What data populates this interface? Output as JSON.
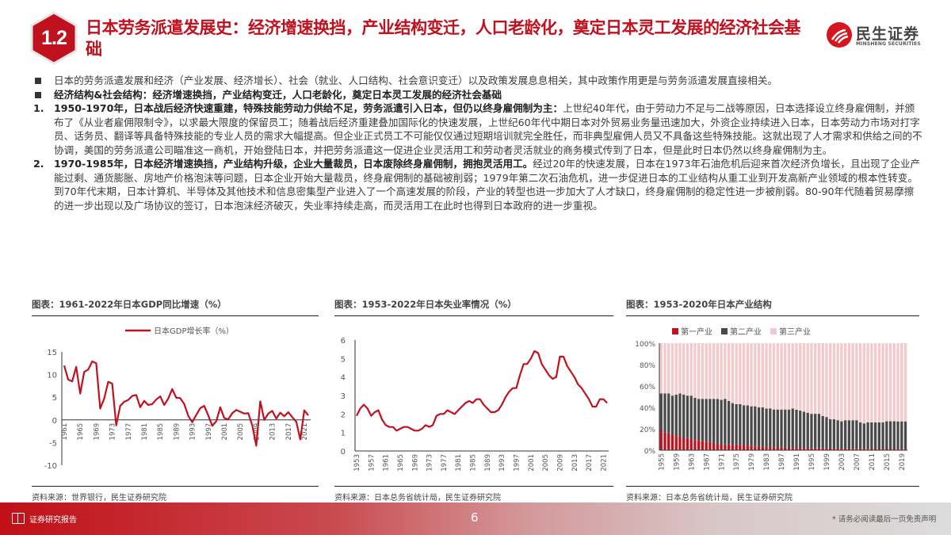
{
  "header": {
    "section_number": "1.2",
    "title": "日本劳务派遣发展史：经济增速换挡，产业结构变迁，人口老龄化，奠定日本灵工发展的经济社会基础",
    "logo_cn": "民生证券",
    "logo_en": "MINSHENG SECURITIES"
  },
  "body": {
    "bullet1": "日本的劳务派遣发展和经济（产业发展、经济增长）、社会（就业、人口结构、社会意识变迁）以及政策发展息息相关，其中政策作用更是与劳务派遣发展直接相关。",
    "bullet2": "经济结构&社会结构：经济增速换挡，产业结构变迁，人口老龄化，奠定日本灵工发展的经济社会基础",
    "item1_marker": "1.",
    "item1_bold": "1950-1970年，日本战后经济快速重建，特殊技能劳动力供给不足，劳务派遣引入日本，但仍以终身雇佣制为主：",
    "item1_text": "上世纪40年代，由于劳动力不足与二战等原因，日本选择设立终身雇佣制，并颁布了《从业者雇佣限制令》，以求最大限度的保留员工；随着战后经济重建叠加国际化的快速发展，上世纪60年代中期日本对外贸易业务量迅速加大，外资企业持续进入日本，日本劳动力市场对打字员、话务员、翻译等具备特殊技能的专业人员的需求大幅提高。但企业正式员工不可能仅仅通过短期培训就完全胜任，而非典型雇佣人员又不具备这些特殊技能。这就出现了人才需求和供给之间的不协调，美国的劳务派遣公司瞄准这一商机，开始登陆日本，并把劳务派遣这一促进企业灵活用工和劳动者灵活就业的商务模式传到了日本，但是此时日本仍然以终身雇佣制为主。",
    "item2_marker": "2.",
    "item2_bold": "1970-1985年，日本经济增速换挡，产业结构升级，企业大量裁员，日本废除终身雇佣制，拥抱灵活用工。",
    "item2_text": "经过20年的快速发展，日本在1973年石油危机后迎来首次经济负增长，且出现了企业产能过剩、通货膨胀、房地产价格泡沫等问题，日本企业开始大量裁员，终身雇佣制的基础被削弱；1979年第二次石油危机，进一步促进日本的工业结构从重工业到开发高新产业领域的根本性转变。到70年代末期，日本计算机、半导体及其他技术和信息密集型产业进入了一个高速发展的阶段，产业的转型也进一步加大了人才缺口，终身雇佣制的稳定性进一步被削弱。80-90年代随着贸易摩擦的进一步出现以及广场协议的签订，日本泡沫经济破灭，失业率持续走高，而灵活用工在此时也得到日本政府的进一步重视。"
  },
  "charts": {
    "gdp": {
      "title": "图表：1961-2022年日本GDP同比增速（%）",
      "source": "资料来源：世界银行，民生证券研究院"
    },
    "unemp": {
      "title": "图表：1953-2022年日本失业率情况（%）",
      "source": "资料来源：日本总务省统计局，民生证券研究院"
    },
    "industry": {
      "title": "图表：1953-2020年日本产业结构",
      "source": "资料来源：日本总务省统计局，民生证券研究院"
    }
  },
  "chart_data": [
    {
      "type": "line",
      "title": "1961-2022年日本GDP同比增速（%）",
      "legend": [
        "日本GDP增长率（%）"
      ],
      "xlabel": "",
      "ylabel": "",
      "ylim": [
        -10,
        15
      ],
      "yticks": [
        -10,
        -5,
        0,
        5,
        10,
        15
      ],
      "xticks": [
        "1961",
        "1965",
        "1969",
        "1973",
        "1977",
        "1981",
        "1985",
        "1989",
        "1993",
        "1997",
        "2001",
        "2005",
        "2009",
        "2013",
        "2017",
        "2021"
      ],
      "color": "#c0111f",
      "x": [
        1961,
        1962,
        1963,
        1964,
        1965,
        1966,
        1967,
        1968,
        1969,
        1970,
        1971,
        1972,
        1973,
        1974,
        1975,
        1976,
        1977,
        1978,
        1979,
        1980,
        1981,
        1982,
        1983,
        1984,
        1985,
        1986,
        1987,
        1988,
        1989,
        1990,
        1991,
        1992,
        1993,
        1994,
        1995,
        1996,
        1997,
        1998,
        1999,
        2000,
        2001,
        2002,
        2003,
        2004,
        2005,
        2006,
        2007,
        2008,
        2009,
        2010,
        2011,
        2012,
        2013,
        2014,
        2015,
        2016,
        2017,
        2018,
        2019,
        2020,
        2021,
        2022
      ],
      "values": [
        12.0,
        8.9,
        8.5,
        11.7,
        5.8,
        10.6,
        11.1,
        12.9,
        12.5,
        2.5,
        4.7,
        8.4,
        8.0,
        -1.2,
        3.1,
        4.0,
        4.4,
        5.3,
        5.5,
        2.8,
        4.2,
        3.3,
        3.5,
        4.5,
        5.2,
        3.3,
        4.7,
        6.8,
        4.9,
        4.8,
        3.5,
        0.9,
        -0.5,
        1.1,
        2.6,
        3.1,
        1.0,
        -1.3,
        -0.3,
        2.8,
        0.4,
        0.1,
        1.5,
        2.2,
        1.8,
        1.4,
        1.5,
        -1.2,
        -5.7,
        4.1,
        0.0,
        1.4,
        2.0,
        0.3,
        1.6,
        0.8,
        1.7,
        0.6,
        -0.4,
        -4.3,
        2.1,
        1.0
      ]
    },
    {
      "type": "line",
      "title": "1953-2022年日本失业率情况（%）",
      "xlabel": "",
      "ylabel": "",
      "ylim": [
        0,
        6
      ],
      "yticks": [
        0,
        1,
        2,
        3,
        4,
        5,
        6
      ],
      "xticks": [
        "1953",
        "1957",
        "1961",
        "1965",
        "1969",
        "1973",
        "1977",
        "1981",
        "1985",
        "1989",
        "1993",
        "1997",
        "2001",
        "2005",
        "2009",
        "2013",
        "2017",
        "2021"
      ],
      "color": "#c0111f",
      "x": [
        1953,
        1954,
        1955,
        1956,
        1957,
        1958,
        1959,
        1960,
        1961,
        1962,
        1963,
        1964,
        1965,
        1966,
        1967,
        1968,
        1969,
        1970,
        1971,
        1972,
        1973,
        1974,
        1975,
        1976,
        1977,
        1978,
        1979,
        1980,
        1981,
        1982,
        1983,
        1984,
        1985,
        1986,
        1987,
        1988,
        1989,
        1990,
        1991,
        1992,
        1993,
        1994,
        1995,
        1996,
        1997,
        1998,
        1999,
        2000,
        2001,
        2002,
        2003,
        2004,
        2005,
        2006,
        2007,
        2008,
        2009,
        2010,
        2011,
        2012,
        2013,
        2014,
        2015,
        2016,
        2017,
        2018,
        2019,
        2020,
        2021,
        2022
      ],
      "values": [
        1.9,
        2.3,
        2.5,
        2.3,
        1.9,
        2.1,
        2.2,
        1.7,
        1.4,
        1.3,
        1.3,
        1.1,
        1.2,
        1.3,
        1.3,
        1.2,
        1.1,
        1.1,
        1.2,
        1.4,
        1.3,
        1.4,
        1.9,
        2.0,
        2.0,
        2.2,
        2.1,
        2.0,
        2.2,
        2.4,
        2.6,
        2.7,
        2.6,
        2.8,
        2.8,
        2.5,
        2.3,
        2.1,
        2.1,
        2.2,
        2.5,
        2.9,
        3.2,
        3.4,
        3.4,
        4.1,
        4.7,
        4.7,
        5.0,
        5.4,
        5.3,
        4.7,
        4.4,
        4.1,
        3.9,
        4.0,
        5.1,
        5.1,
        4.6,
        4.3,
        4.0,
        3.6,
        3.4,
        3.1,
        2.8,
        2.4,
        2.4,
        2.8,
        2.8,
        2.6
      ]
    },
    {
      "type": "bar",
      "stacked": true,
      "percent": true,
      "title": "1953-2020年日本产业结构",
      "ylim": [
        0,
        100
      ],
      "yticks": [
        "0%",
        "20%",
        "40%",
        "60%",
        "80%",
        "100%"
      ],
      "xticks": [
        "1955",
        "1959",
        "1963",
        "1967",
        "1971",
        "1975",
        "1979",
        "1983",
        "1987",
        "1991",
        "1995",
        "1999",
        "2003",
        "2007",
        "2011",
        "2015",
        "2019"
      ],
      "x": [
        1955,
        1956,
        1957,
        1958,
        1959,
        1960,
        1961,
        1962,
        1963,
        1964,
        1965,
        1966,
        1967,
        1968,
        1969,
        1970,
        1971,
        1972,
        1973,
        1974,
        1975,
        1976,
        1977,
        1978,
        1979,
        1980,
        1981,
        1982,
        1983,
        1984,
        1985,
        1986,
        1987,
        1988,
        1989,
        1990,
        1991,
        1992,
        1993,
        1994,
        1995,
        1996,
        1997,
        1998,
        1999,
        2000,
        2001,
        2002,
        2003,
        2004,
        2005,
        2006,
        2007,
        2008,
        2009,
        2010,
        2011,
        2012,
        2013,
        2014,
        2015,
        2016,
        2017,
        2018,
        2019,
        2020
      ],
      "series": [
        {
          "name": "第一产业",
          "color": "#c0111f",
          "values": [
            19.2,
            16.5,
            15.8,
            14.4,
            13.2,
            12.8,
            11.5,
            11.2,
            10.3,
            9.5,
            9.5,
            8.8,
            8.0,
            7.5,
            6.7,
            5.9,
            5.2,
            5.3,
            5.3,
            4.9,
            5.3,
            5.0,
            4.8,
            4.4,
            3.8,
            3.5,
            3.4,
            3.1,
            3.0,
            3.0,
            2.8,
            2.6,
            2.4,
            2.3,
            2.2,
            2.1,
            2.0,
            1.9,
            1.8,
            1.8,
            1.7,
            1.7,
            1.6,
            1.6,
            1.6,
            1.5,
            1.4,
            1.4,
            1.4,
            1.3,
            1.2,
            1.2,
            1.2,
            1.2,
            1.2,
            1.2,
            1.1,
            1.1,
            1.1,
            1.1,
            1.1,
            1.1,
            1.1,
            1.0,
            1.0,
            1.0
          ]
        },
        {
          "name": "第二产业",
          "color": "#4a4a4a",
          "values": [
            33.8,
            36.5,
            37.2,
            36.6,
            38.8,
            40.2,
            40.5,
            39.8,
            40.7,
            39.5,
            38.5,
            39.2,
            40.0,
            40.5,
            41.3,
            42.1,
            41.8,
            42.7,
            40.7,
            39.1,
            37.7,
            38.0,
            37.2,
            37.6,
            37.2,
            37.5,
            36.6,
            36.9,
            36.0,
            36.0,
            35.2,
            35.4,
            35.6,
            35.7,
            35.8,
            36.9,
            35.8,
            35.1,
            34.2,
            33.2,
            32.3,
            32.3,
            32.4,
            30.4,
            29.4,
            27.5,
            27.6,
            26.6,
            25.6,
            26.7,
            26.8,
            26.8,
            26.8,
            24.8,
            23.8,
            24.8,
            24.9,
            24.9,
            24.9,
            24.9,
            25.9,
            25.9,
            25.9,
            25.9,
            25.9,
            25.9
          ]
        },
        {
          "name": "第三产业",
          "color": "#f3c9cb",
          "values": [
            47.0,
            47.0,
            47.0,
            49.0,
            48.0,
            47.0,
            48.0,
            49.0,
            49.0,
            51.0,
            52.0,
            52.0,
            52.0,
            52.0,
            52.0,
            52.0,
            53.0,
            52.0,
            54.0,
            56.0,
            57.0,
            57.0,
            58.0,
            58.0,
            59.0,
            59.0,
            60.0,
            60.0,
            61.0,
            61.0,
            62.0,
            62.0,
            62.0,
            62.0,
            62.0,
            61.0,
            62.2,
            63.0,
            64.0,
            65.0,
            66.0,
            66.0,
            66.0,
            68.0,
            69.0,
            71.0,
            71.0,
            72.0,
            73.0,
            72.0,
            72.0,
            72.0,
            72.0,
            74.0,
            75.0,
            74.0,
            74.0,
            74.0,
            74.0,
            74.0,
            73.0,
            73.0,
            73.0,
            73.1,
            73.1,
            73.1
          ]
        }
      ]
    }
  ],
  "footer": {
    "label": "证券研究报告",
    "page": "6",
    "disclaimer": "* 请务必阅读最后一页免责声明"
  }
}
